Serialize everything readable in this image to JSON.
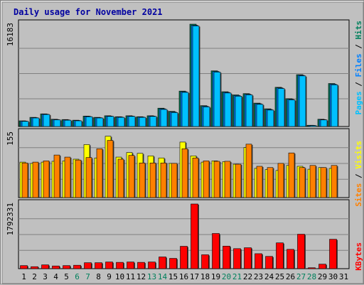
{
  "title": "Daily usage for November 2021",
  "colors": {
    "pages": "#00c0ff",
    "files": "#0080ff",
    "hits": "#00805c",
    "visits": "#ffff00",
    "sites": "#ff8000",
    "kbytes": "#ff0000",
    "weekday_label": "#000000",
    "weekend_label": "#00805c",
    "title": "#0000a0"
  },
  "legends": {
    "top": [
      "Pages",
      "Files",
      "Hits"
    ],
    "middle": [
      "Sites",
      "Visits"
    ],
    "bottom": [
      "KBytes"
    ]
  },
  "chart_data": [
    {
      "type": "bar",
      "panel": "hits-files-pages",
      "ymax_label": "16183",
      "ylim": [
        0,
        16183
      ],
      "categories": [
        "1",
        "2",
        "3",
        "4",
        "5",
        "6",
        "7",
        "8",
        "9",
        "10",
        "11",
        "12",
        "13",
        "14",
        "15",
        "16",
        "17",
        "18",
        "19",
        "20",
        "21",
        "22",
        "23",
        "24",
        "25",
        "26",
        "27",
        "28",
        "29",
        "30",
        "31"
      ],
      "series": [
        {
          "name": "Hits",
          "values": [
            900,
            1450,
            2000,
            1150,
            1100,
            1000,
            1650,
            1450,
            1700,
            1550,
            1700,
            1550,
            1700,
            2900,
            2400,
            5600,
            16183,
            3300,
            8800,
            5500,
            5000,
            5200,
            3700,
            2800,
            6200,
            4400,
            8200,
            200,
            1150,
            6800,
            0
          ]
        },
        {
          "name": "Files",
          "values": [
            860,
            1400,
            1950,
            1100,
            1050,
            950,
            1600,
            1400,
            1650,
            1500,
            1650,
            1500,
            1650,
            2800,
            2300,
            5500,
            16000,
            3200,
            8700,
            5400,
            4900,
            5100,
            3600,
            2700,
            6100,
            4300,
            8100,
            180,
            1100,
            6700,
            0
          ]
        },
        {
          "name": "Pages",
          "values": [
            820,
            1350,
            1900,
            1060,
            1000,
            900,
            1550,
            1350,
            1600,
            1450,
            1600,
            1450,
            1600,
            2700,
            2200,
            5400,
            15900,
            3100,
            8600,
            5300,
            4800,
            5000,
            3500,
            2600,
            6000,
            4200,
            8000,
            150,
            1050,
            6600,
            0
          ]
        }
      ]
    },
    {
      "type": "bar",
      "panel": "visits-sites",
      "ymax_label": "155",
      "ylim": [
        0,
        155
      ],
      "categories": [
        "1",
        "2",
        "3",
        "4",
        "5",
        "6",
        "7",
        "8",
        "9",
        "10",
        "11",
        "12",
        "13",
        "14",
        "15",
        "16",
        "17",
        "18",
        "19",
        "20",
        "21",
        "22",
        "23",
        "24",
        "25",
        "26",
        "27",
        "28",
        "29",
        "30",
        "31"
      ],
      "series": [
        {
          "name": "Visits",
          "values": [
            85,
            82,
            85,
            87,
            88,
            92,
            127,
            95,
            147,
            97,
            108,
            106,
            100,
            95,
            82,
            133,
            100,
            85,
            88,
            86,
            80,
            120,
            70,
            67,
            65,
            77,
            75,
            68,
            72,
            70,
            0
          ]
        },
        {
          "name": "Sites",
          "values": [
            83,
            85,
            88,
            102,
            97,
            90,
            96,
            117,
            137,
            92,
            101,
            83,
            83,
            83,
            82,
            117,
            95,
            88,
            87,
            87,
            80,
            128,
            75,
            72,
            82,
            107,
            72,
            77,
            72,
            77,
            0
          ]
        }
      ]
    },
    {
      "type": "bar",
      "panel": "kbytes",
      "ymax_label": "1792331",
      "ylim": [
        0,
        1792331
      ],
      "categories": [
        "1",
        "2",
        "3",
        "4",
        "5",
        "6",
        "7",
        "8",
        "9",
        "10",
        "11",
        "12",
        "13",
        "14",
        "15",
        "16",
        "17",
        "18",
        "19",
        "20",
        "21",
        "22",
        "23",
        "24",
        "25",
        "26",
        "27",
        "28",
        "29",
        "30",
        "31"
      ],
      "series": [
        {
          "name": "KBytes",
          "values": [
            85000,
            55000,
            105000,
            75000,
            85000,
            95000,
            165000,
            165000,
            185000,
            175000,
            185000,
            175000,
            185000,
            325000,
            285000,
            620000,
            1792331,
            385000,
            975000,
            625000,
            555000,
            580000,
            415000,
            340000,
            715000,
            535000,
            955000,
            25000,
            125000,
            815000,
            0
          ]
        }
      ]
    }
  ],
  "weekend_days": [
    6,
    7,
    13,
    14,
    20,
    21,
    27,
    28
  ]
}
